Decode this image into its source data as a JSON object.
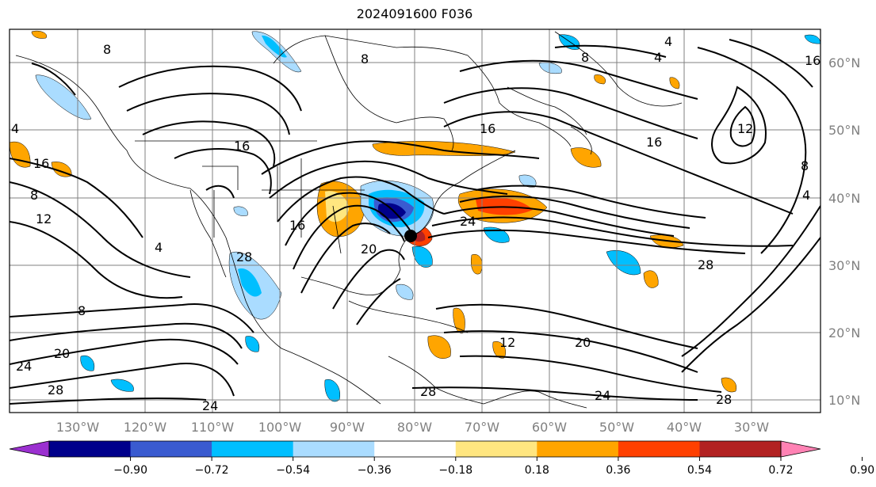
{
  "title": "2024091600 F036",
  "lon_labels": [
    "130°W",
    "120°W",
    "110°W",
    "100°W",
    "90°W",
    "80°W",
    "70°W",
    "60°W",
    "50°W",
    "40°W",
    "30°W"
  ],
  "lat_labels": [
    "60°N",
    "50°N",
    "40°N",
    "30°N",
    "20°N",
    "10°N"
  ],
  "contour_labels": [
    "8",
    "8",
    "8",
    "8",
    "8",
    "8",
    "4",
    "4",
    "4",
    "4",
    "4",
    "12",
    "12",
    "12",
    "16",
    "16",
    "16",
    "16",
    "16",
    "16",
    "20",
    "20",
    "20",
    "24",
    "24",
    "24",
    "24",
    "28",
    "28",
    "28",
    "28",
    "28"
  ],
  "colorbar": {
    "ticks": [
      "−0.90",
      "−0.72",
      "−0.54",
      "−0.36",
      "−0.18",
      "0.18",
      "0.36",
      "0.54",
      "0.72",
      "0.90"
    ],
    "colors": [
      "#9b30d0",
      "#00008b",
      "#3a5bd0",
      "#00bfff",
      "#aadcff",
      "#ffffff",
      "#ffe680",
      "#ffa500",
      "#ff4000",
      "#b22222",
      "#ff82b4"
    ]
  },
  "colors": {
    "grid": "#808080",
    "contour": "#000000",
    "positive_fill": "#ffa500",
    "negative_fill": "#00bfff"
  }
}
